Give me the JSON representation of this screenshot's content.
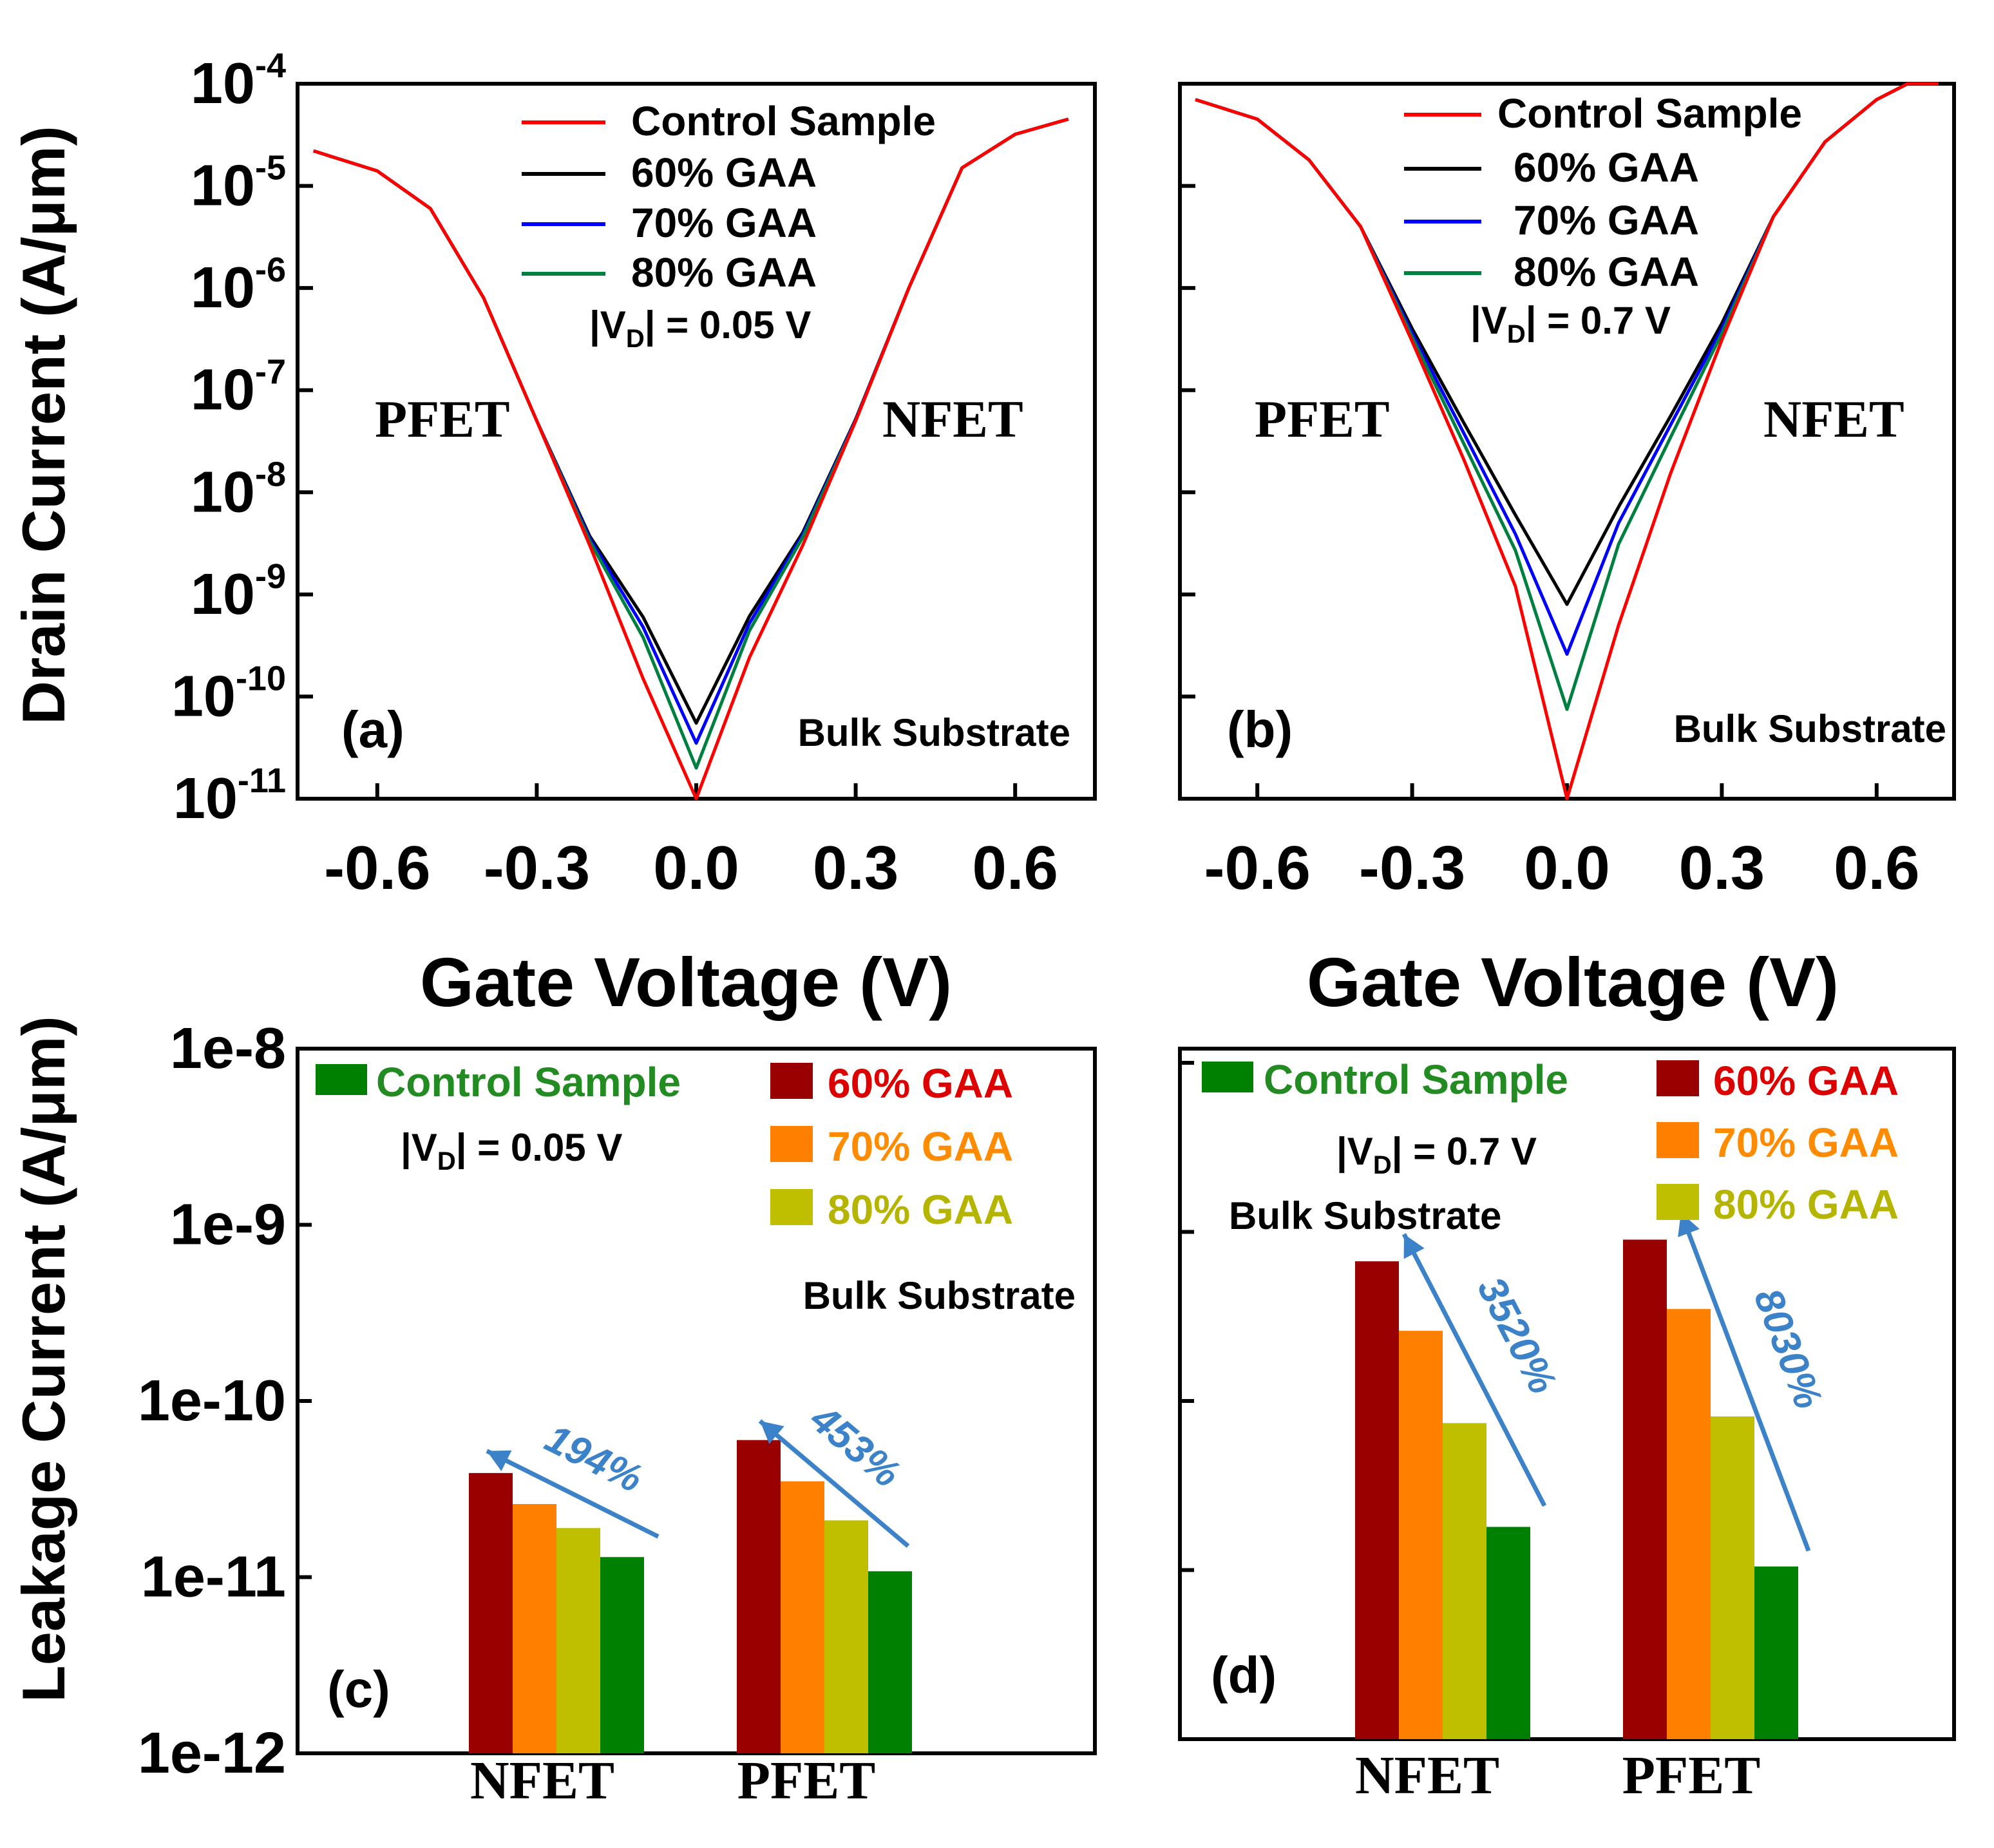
{
  "figure": {
    "y_label_top": "Drain Current (A/μm)",
    "y_label_bottom": "Leakage Current (A/μm)",
    "x_label": "Gate Voltage (V)"
  },
  "colors": {
    "control_line": "#ff0000",
    "gaa60_line": "#000000",
    "gaa70_line": "#0000ff",
    "gaa80_line": "#008040",
    "gaa60_bar": "#990000",
    "gaa70_bar": "#ff8000",
    "gaa80_bar": "#bfbf00",
    "control_bar": "#008000",
    "arrow": "#3c82c8",
    "legend_control_text": "#228b22",
    "legend_60_text": "#dd0000",
    "legend_70_text": "#ff8c00",
    "legend_80_text": "#b5b500"
  },
  "chart_data": [
    {
      "panel": "(a)",
      "type": "line",
      "xlabel": "Gate Voltage (V)",
      "ylabel": "Drain Current (A/μm)",
      "xlim": [
        -0.75,
        0.75
      ],
      "ylim": [
        1e-11,
        0.0001
      ],
      "yscale": "log",
      "xticks": [
        "-0.6",
        "-0.3",
        "0.0",
        "0.3",
        "0.6"
      ],
      "yticks": [
        {
          "base": "10",
          "exp": "-4"
        },
        {
          "base": "10",
          "exp": "-5"
        },
        {
          "base": "10",
          "exp": "-6"
        },
        {
          "base": "10",
          "exp": "-7"
        },
        {
          "base": "10",
          "exp": "-8"
        },
        {
          "base": "10",
          "exp": "-9"
        },
        {
          "base": "10",
          "exp": "-10"
        },
        {
          "base": "10",
          "exp": "-11"
        }
      ],
      "legend": [
        "Control Sample",
        "60% GAA",
        "70% GAA",
        "80% GAA"
      ],
      "condition_prefix": "|V",
      "condition_sub": "D",
      "condition_suffix": "| = 0.05 V",
      "left_region": "PFET",
      "right_region": "NFET",
      "substrate": "Bulk Substrate",
      "series": [
        {
          "name": "Control Sample",
          "x": [
            -0.72,
            -0.6,
            -0.5,
            -0.4,
            -0.3,
            -0.2,
            -0.1,
            0.0,
            0.1,
            0.2,
            0.3,
            0.4,
            0.5,
            0.6,
            0.7
          ],
          "y": [
            2.2e-05,
            1.4e-05,
            6e-06,
            8e-07,
            5e-08,
            3e-09,
            1.5e-10,
            1e-11,
            2.4e-10,
            3e-09,
            5e-08,
            1e-06,
            1.5e-05,
            3.2e-05,
            4.5e-05
          ]
        },
        {
          "name": "60% GAA",
          "x": [
            -0.72,
            -0.6,
            -0.5,
            -0.4,
            -0.3,
            -0.2,
            -0.1,
            0.0,
            0.1,
            0.2,
            0.3,
            0.4,
            0.5,
            0.6,
            0.7
          ],
          "y": [
            2.2e-05,
            1.4e-05,
            6e-06,
            8e-07,
            5e-08,
            3.7e-09,
            6e-10,
            5.5e-11,
            6.1e-10,
            4e-09,
            5.2e-08,
            1e-06,
            1.5e-05,
            3.2e-05,
            4.5e-05
          ]
        },
        {
          "name": "70% GAA",
          "x": [
            -0.72,
            -0.6,
            -0.5,
            -0.4,
            -0.3,
            -0.2,
            -0.1,
            0.0,
            0.1,
            0.2,
            0.3,
            0.4,
            0.5,
            0.6,
            0.7
          ],
          "y": [
            2.2e-05,
            1.4e-05,
            6e-06,
            8e-07,
            5e-08,
            3.5e-09,
            4.8e-10,
            3.5e-11,
            5.2e-10,
            3.8e-09,
            5.1e-08,
            1e-06,
            1.5e-05,
            3.2e-05,
            4.5e-05
          ]
        },
        {
          "name": "80% GAA",
          "x": [
            -0.72,
            -0.6,
            -0.5,
            -0.4,
            -0.3,
            -0.2,
            -0.1,
            0.0,
            0.1,
            0.2,
            0.3,
            0.4,
            0.5,
            0.6,
            0.7
          ],
          "y": [
            2.2e-05,
            1.4e-05,
            6e-06,
            8e-07,
            5e-08,
            3.3e-09,
            3.8e-10,
            2e-11,
            4.4e-10,
            3.6e-09,
            5e-08,
            1e-06,
            1.5e-05,
            3.2e-05,
            4.5e-05
          ]
        }
      ]
    },
    {
      "panel": "(b)",
      "type": "line",
      "xlabel": "Gate Voltage (V)",
      "ylabel": "Drain Current (A/μm)",
      "xlim": [
        -0.75,
        0.75
      ],
      "ylim": [
        1e-11,
        0.0001
      ],
      "yscale": "log",
      "xticks": [
        "-0.6",
        "-0.3",
        "0.0",
        "0.3",
        "0.6"
      ],
      "legend": [
        "Control Sample",
        "60% GAA",
        "70% GAA",
        "80% GAA"
      ],
      "condition_prefix": "|V",
      "condition_sub": "D",
      "condition_suffix": "| = 0.7 V",
      "left_region": "PFET",
      "right_region": "NFET",
      "substrate": "Bulk Substrate",
      "series": [
        {
          "name": "Control Sample",
          "x": [
            -0.72,
            -0.6,
            -0.5,
            -0.4,
            -0.3,
            -0.2,
            -0.1,
            0.0,
            0.1,
            0.2,
            0.3,
            0.4,
            0.5,
            0.6,
            0.66,
            0.72
          ],
          "y": [
            7e-05,
            4.5e-05,
            1.8e-05,
            4e-06,
            3e-07,
            2.1e-08,
            1.2e-09,
            1e-11,
            5e-10,
            1.5e-08,
            3.1e-07,
            5e-06,
            2.7e-05,
            7e-05,
            0.0001,
            0.0001
          ]
        },
        {
          "name": "60% GAA",
          "x": [
            -0.72,
            -0.6,
            -0.5,
            -0.4,
            -0.3,
            -0.2,
            -0.1,
            0.0,
            0.1,
            0.2,
            0.3,
            0.4,
            0.5,
            0.6,
            0.66,
            0.72
          ],
          "y": [
            7e-05,
            4.5e-05,
            1.8e-05,
            4e-06,
            4e-07,
            4.8e-08,
            6e-09,
            8e-10,
            7.2e-09,
            5.5e-08,
            4.5e-07,
            5e-06,
            2.7e-05,
            7e-05,
            0.0001,
            0.0001
          ]
        },
        {
          "name": "70% GAA",
          "x": [
            -0.72,
            -0.6,
            -0.5,
            -0.4,
            -0.3,
            -0.2,
            -0.1,
            0.0,
            0.1,
            0.2,
            0.3,
            0.4,
            0.5,
            0.6,
            0.66,
            0.72
          ],
          "y": [
            7e-05,
            4.5e-05,
            1.8e-05,
            4e-06,
            3.6e-07,
            3.8e-08,
            3.9e-09,
            2.6e-10,
            5e-09,
            4.5e-08,
            4e-07,
            5e-06,
            2.7e-05,
            7e-05,
            0.0001,
            0.0001
          ]
        },
        {
          "name": "80% GAA",
          "x": [
            -0.72,
            -0.6,
            -0.5,
            -0.4,
            -0.3,
            -0.2,
            -0.1,
            0.0,
            0.1,
            0.2,
            0.3,
            0.4,
            0.5,
            0.6,
            0.66,
            0.72
          ],
          "y": [
            7e-05,
            4.5e-05,
            1.8e-05,
            4e-06,
            3.3e-07,
            3e-08,
            2.7e-09,
            7.5e-11,
            3.1e-09,
            3.4e-08,
            3.6e-07,
            5e-06,
            2.7e-05,
            7e-05,
            0.0001,
            0.0001
          ]
        }
      ]
    },
    {
      "panel": "(c)",
      "type": "bar",
      "ylabel": "Leakage Current (A/μm)",
      "yscale": "log",
      "ylim": [
        1e-12,
        1e-08
      ],
      "yticks": [
        "1e-8",
        "1e-9",
        "1e-10",
        "1e-11",
        "1e-12"
      ],
      "categories": [
        "NFET",
        "PFET"
      ],
      "legend_left": [
        "Control Sample"
      ],
      "legend_right": [
        "60% GAA",
        "70% GAA",
        "80% GAA"
      ],
      "condition_prefix": "|V",
      "condition_sub": "D",
      "condition_suffix": "| = 0.05 V",
      "substrate": "Bulk Substrate",
      "series": [
        {
          "name": "60% GAA",
          "values": [
            3.9e-11,
            6e-11
          ]
        },
        {
          "name": "70% GAA",
          "values": [
            2.6e-11,
            3.5e-11
          ]
        },
        {
          "name": "80% GAA",
          "values": [
            1.9e-11,
            2.1e-11
          ]
        },
        {
          "name": "Control Sample",
          "values": [
            1.3e-11,
            1.08e-11
          ]
        }
      ],
      "annotations": [
        "194%",
        "453%"
      ]
    },
    {
      "panel": "(d)",
      "type": "bar",
      "ylabel": "Leakage Current (A/μm)",
      "yscale": "log",
      "ylim": [
        1e-12,
        1e-08
      ],
      "categories": [
        "NFET",
        "PFET"
      ],
      "legend_left": [
        "Control Sample"
      ],
      "legend_right": [
        "60% GAA",
        "70% GAA",
        "80% GAA"
      ],
      "condition_prefix": "|V",
      "condition_sub": "D",
      "condition_suffix": "| = 0.7 V",
      "substrate": "Bulk Substrate",
      "series": [
        {
          "name": "60% GAA",
          "values": [
            6.7e-10,
            9e-10
          ]
        },
        {
          "name": "70% GAA",
          "values": [
            2.6e-10,
            3.5e-10
          ]
        },
        {
          "name": "80% GAA",
          "values": [
            7.4e-11,
            8.1e-11
          ]
        },
        {
          "name": "Control Sample",
          "values": [
            1.8e-11,
            1.05e-11
          ]
        }
      ],
      "annotations": [
        "3520%",
        "8030%"
      ]
    }
  ]
}
